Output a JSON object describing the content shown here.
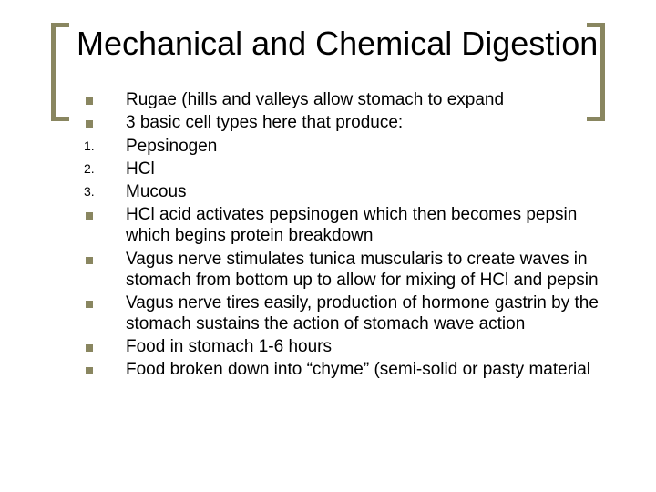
{
  "title": "Mechanical and Chemical Digestion",
  "accent_color": "#898660",
  "text_color": "#000000",
  "background_color": "#ffffff",
  "title_fontsize": 36,
  "body_fontsize": 19,
  "items": [
    {
      "marker": "square",
      "label": "",
      "text": "Rugae (hills and valleys allow stomach to expand"
    },
    {
      "marker": "square",
      "label": "",
      "text": "3 basic cell types here that produce:"
    },
    {
      "marker": "num",
      "label": "1.",
      "text": "Pepsinogen"
    },
    {
      "marker": "num",
      "label": "2.",
      "text": "HCl"
    },
    {
      "marker": "num",
      "label": "3.",
      "text": "Mucous"
    },
    {
      "marker": "square",
      "label": "",
      "text": "HCl acid activates pepsinogen which then becomes pepsin which begins protein breakdown"
    },
    {
      "marker": "square",
      "label": "",
      "text": "Vagus nerve stimulates tunica muscularis to create waves in stomach from bottom up to allow for mixing of HCl and pepsin"
    },
    {
      "marker": "square",
      "label": "",
      "text": "Vagus nerve tires easily, production of hormone gastrin by the stomach sustains the action of stomach wave action"
    },
    {
      "marker": "square",
      "label": "",
      "text": "Food in stomach 1-6 hours"
    },
    {
      "marker": "square",
      "label": "",
      "text": "Food broken down into “chyme” (semi-solid or pasty material"
    }
  ]
}
